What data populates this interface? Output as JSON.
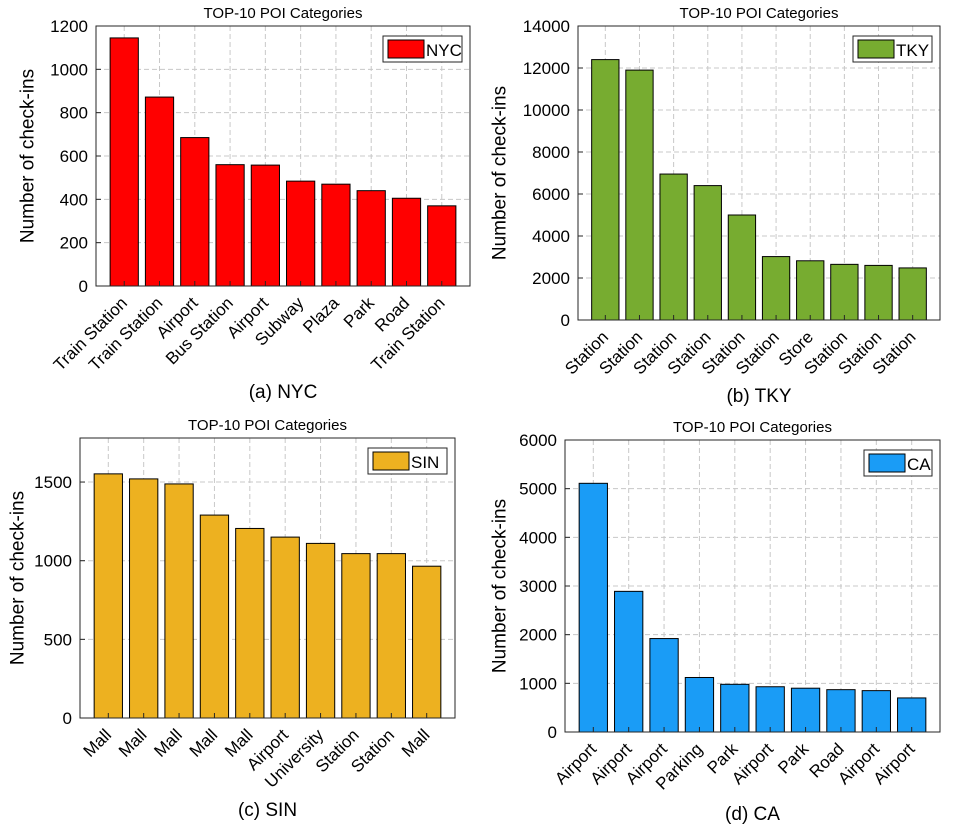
{
  "chart_data": [
    {
      "type": "bar",
      "title": "TOP-10 POI Categories",
      "caption": "(a) NYC",
      "ylabel": "Number of check-ins",
      "xlabel": "",
      "categories": [
        "Train Station",
        "Train Station",
        "Airport",
        "Bus Station",
        "Airport",
        "Subway",
        "Plaza",
        "Park",
        "Road",
        "Train Station"
      ],
      "series": [
        {
          "name": "NYC",
          "values": [
            1145,
            872,
            685,
            560,
            558,
            484,
            470,
            440,
            405,
            370
          ]
        }
      ],
      "ylim": [
        0,
        1200
      ],
      "yticks": [
        0,
        200,
        400,
        600,
        800,
        1000,
        1200
      ],
      "color": "#ff0000",
      "grid": true,
      "legend_position": "top-right"
    },
    {
      "type": "bar",
      "title": "TOP-10 POI Categories",
      "caption": "(b) TKY",
      "ylabel": "Number of check-ins",
      "xlabel": "",
      "categories": [
        "Station",
        "Station",
        "Station",
        "Station",
        "Station",
        "Station",
        "Store",
        "Station",
        "Station",
        "Station"
      ],
      "series": [
        {
          "name": "TKY",
          "values": [
            12400,
            11900,
            6950,
            6400,
            5000,
            3020,
            2820,
            2650,
            2600,
            2480
          ]
        }
      ],
      "ylim": [
        0,
        14000
      ],
      "yticks": [
        0,
        2000,
        4000,
        6000,
        8000,
        10000,
        12000,
        14000
      ],
      "color": "#77ac30",
      "grid": true,
      "legend_position": "top-right"
    },
    {
      "type": "bar",
      "title": "TOP-10 POI Categories",
      "caption": "(c) SIN",
      "ylabel": "Number of check-ins",
      "xlabel": "",
      "categories": [
        "Mall",
        "Mall",
        "Mall",
        "Mall",
        "Mall",
        "Airport",
        "University",
        "Station",
        "Station",
        "Mall"
      ],
      "series": [
        {
          "name": "SIN",
          "values": [
            1552,
            1520,
            1488,
            1290,
            1205,
            1150,
            1110,
            1045,
            1045,
            965
          ]
        }
      ],
      "ylim": [
        0,
        1780
      ],
      "yticks": [
        0,
        500,
        1000,
        1500
      ],
      "color": "#edb120",
      "grid": true,
      "legend_position": "top-right"
    },
    {
      "type": "bar",
      "title": "TOP-10 POI Categories",
      "caption": "(d) CA",
      "ylabel": "Number of check-ins",
      "xlabel": "",
      "categories": [
        "Airport",
        "Airport",
        "Airport",
        "Parking",
        "Park",
        "Airport",
        "Park",
        "Road",
        "Airport",
        "Airport"
      ],
      "series": [
        {
          "name": "CA",
          "values": [
            5110,
            2890,
            1920,
            1120,
            980,
            930,
            900,
            870,
            850,
            700
          ]
        }
      ],
      "ylim": [
        0,
        6000
      ],
      "yticks": [
        0,
        1000,
        2000,
        3000,
        4000,
        5000,
        6000
      ],
      "color": "#1a9cf6",
      "grid": true,
      "legend_position": "top-right"
    }
  ]
}
